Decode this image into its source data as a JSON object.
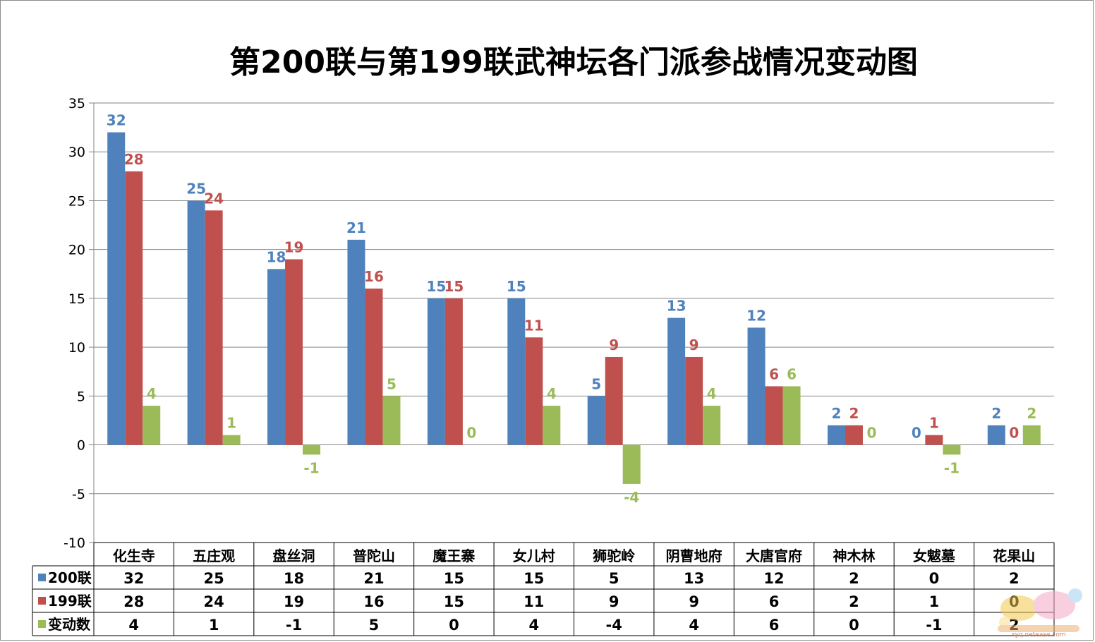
{
  "colors": {
    "s200": "#4F81BD",
    "s199": "#C0504D",
    "diff": "#9BBB59",
    "grid": "#868686"
  },
  "chart_data": {
    "type": "bar",
    "title": "第200联与第199联武神坛各门派参战情况变动图",
    "categories": [
      "化生寺",
      "五庄观",
      "盘丝洞",
      "普陀山",
      "魔王寨",
      "女儿村",
      "狮驼岭",
      "阴曹地府",
      "大唐官府",
      "神木林",
      "女魃墓",
      "花果山"
    ],
    "series": [
      {
        "name": "200联",
        "values": [
          32,
          25,
          18,
          21,
          15,
          15,
          5,
          13,
          12,
          2,
          0,
          2
        ]
      },
      {
        "name": "199联",
        "values": [
          28,
          24,
          19,
          16,
          15,
          11,
          9,
          9,
          6,
          2,
          1,
          0
        ]
      },
      {
        "name": "变动数",
        "values": [
          4,
          1,
          -1,
          5,
          0,
          4,
          -4,
          4,
          6,
          0,
          -1,
          2
        ]
      }
    ],
    "ylim": [
      -10,
      35
    ],
    "yticks": [
      -10,
      -5,
      0,
      5,
      10,
      15,
      20,
      25,
      30,
      35
    ],
    "grid": true,
    "legend": "data-table"
  },
  "watermark": {
    "name": "forum-watermark-logo",
    "text": "xyq.netease.com"
  }
}
